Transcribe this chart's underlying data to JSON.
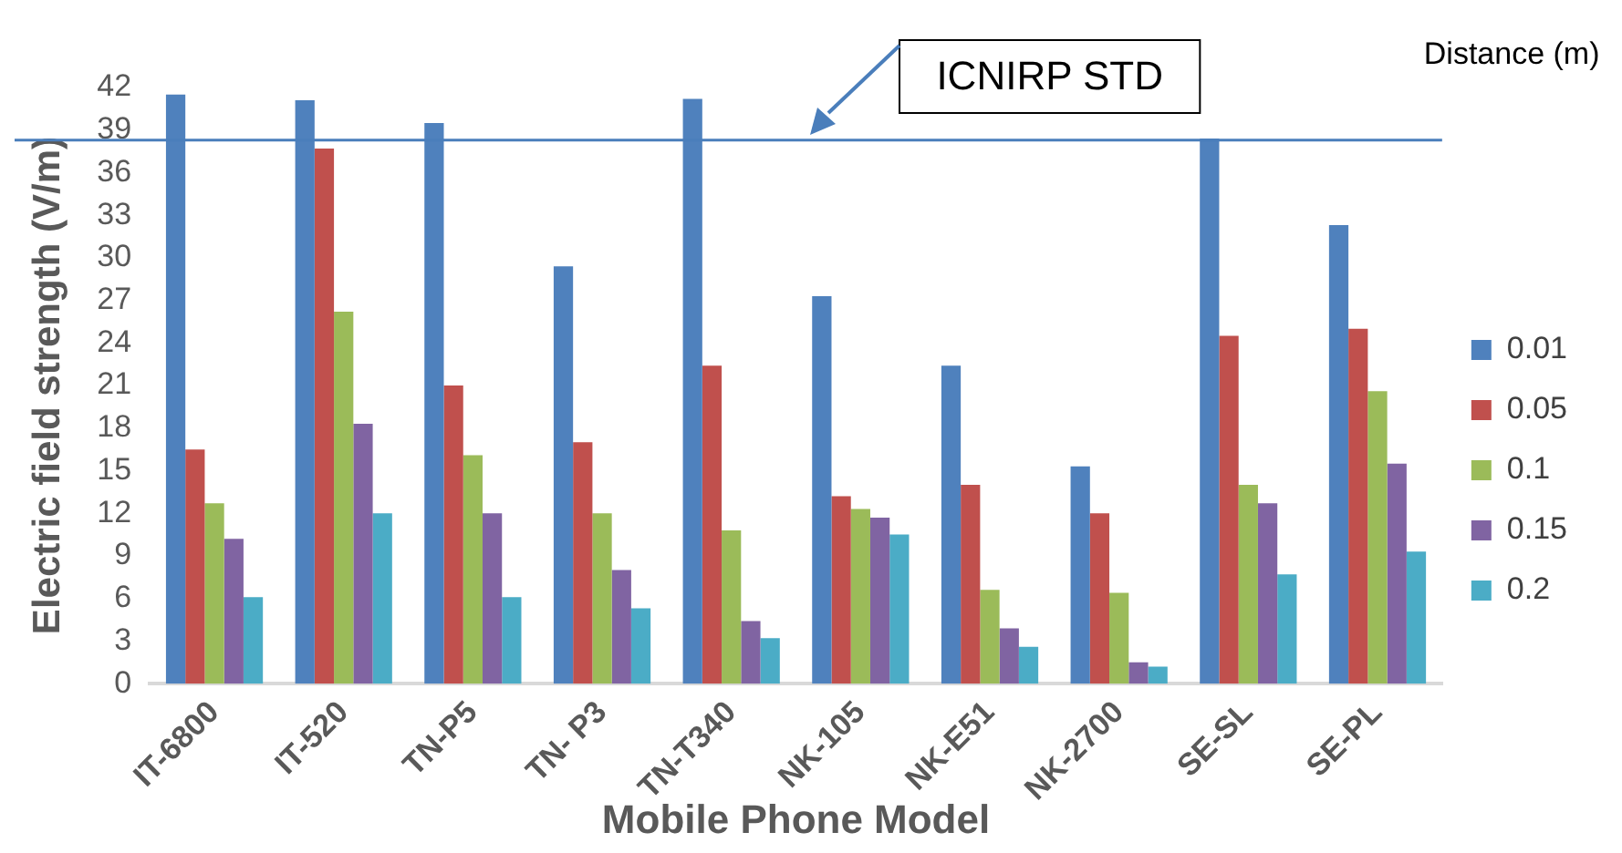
{
  "chart_data": {
    "type": "bar",
    "xlabel": "Mobile Phone Model",
    "ylabel": "Electric field strength (V/m)",
    "legend_title": "Distance (m)",
    "categories": [
      "IT-6800",
      "IT-520",
      "TN-P5",
      "TN- P3",
      "TN-T340",
      "NK-105",
      "NK-E51",
      "NK-2700",
      "SE-SL",
      "SE-PL"
    ],
    "series": [
      {
        "name": "0.01",
        "color": "#4f81bd",
        "values": [
          41.5,
          41.1,
          39.5,
          29.4,
          41.2,
          27.3,
          22.4,
          15.3,
          38.4,
          32.3
        ]
      },
      {
        "name": "0.05",
        "color": "#c0504d",
        "values": [
          16.5,
          37.7,
          21.0,
          17.0,
          22.4,
          13.2,
          14.0,
          12.0,
          24.5,
          25.0
        ]
      },
      {
        "name": "0.1",
        "color": "#9bbb59",
        "values": [
          12.7,
          26.2,
          16.1,
          12.0,
          10.8,
          12.3,
          6.6,
          6.4,
          14.0,
          20.6
        ]
      },
      {
        "name": "0.15",
        "color": "#8064a2",
        "values": [
          10.2,
          18.3,
          12.0,
          8.0,
          4.4,
          11.7,
          3.9,
          1.5,
          12.7,
          15.5
        ]
      },
      {
        "name": "0.2",
        "color": "#4bacc6",
        "values": [
          6.1,
          12.0,
          6.1,
          5.3,
          3.2,
          10.5,
          2.6,
          1.2,
          7.7,
          9.3
        ]
      }
    ],
    "ylim": [
      0,
      42
    ],
    "yticks": [
      0,
      3,
      6,
      9,
      12,
      15,
      18,
      21,
      24,
      27,
      30,
      33,
      36,
      39,
      42
    ],
    "ref_lines": [
      {
        "axis": "y",
        "value": 38.3,
        "label": "ICNIRP STD",
        "color": "#4a7ebb"
      }
    ],
    "grid": false,
    "legend": "right"
  }
}
